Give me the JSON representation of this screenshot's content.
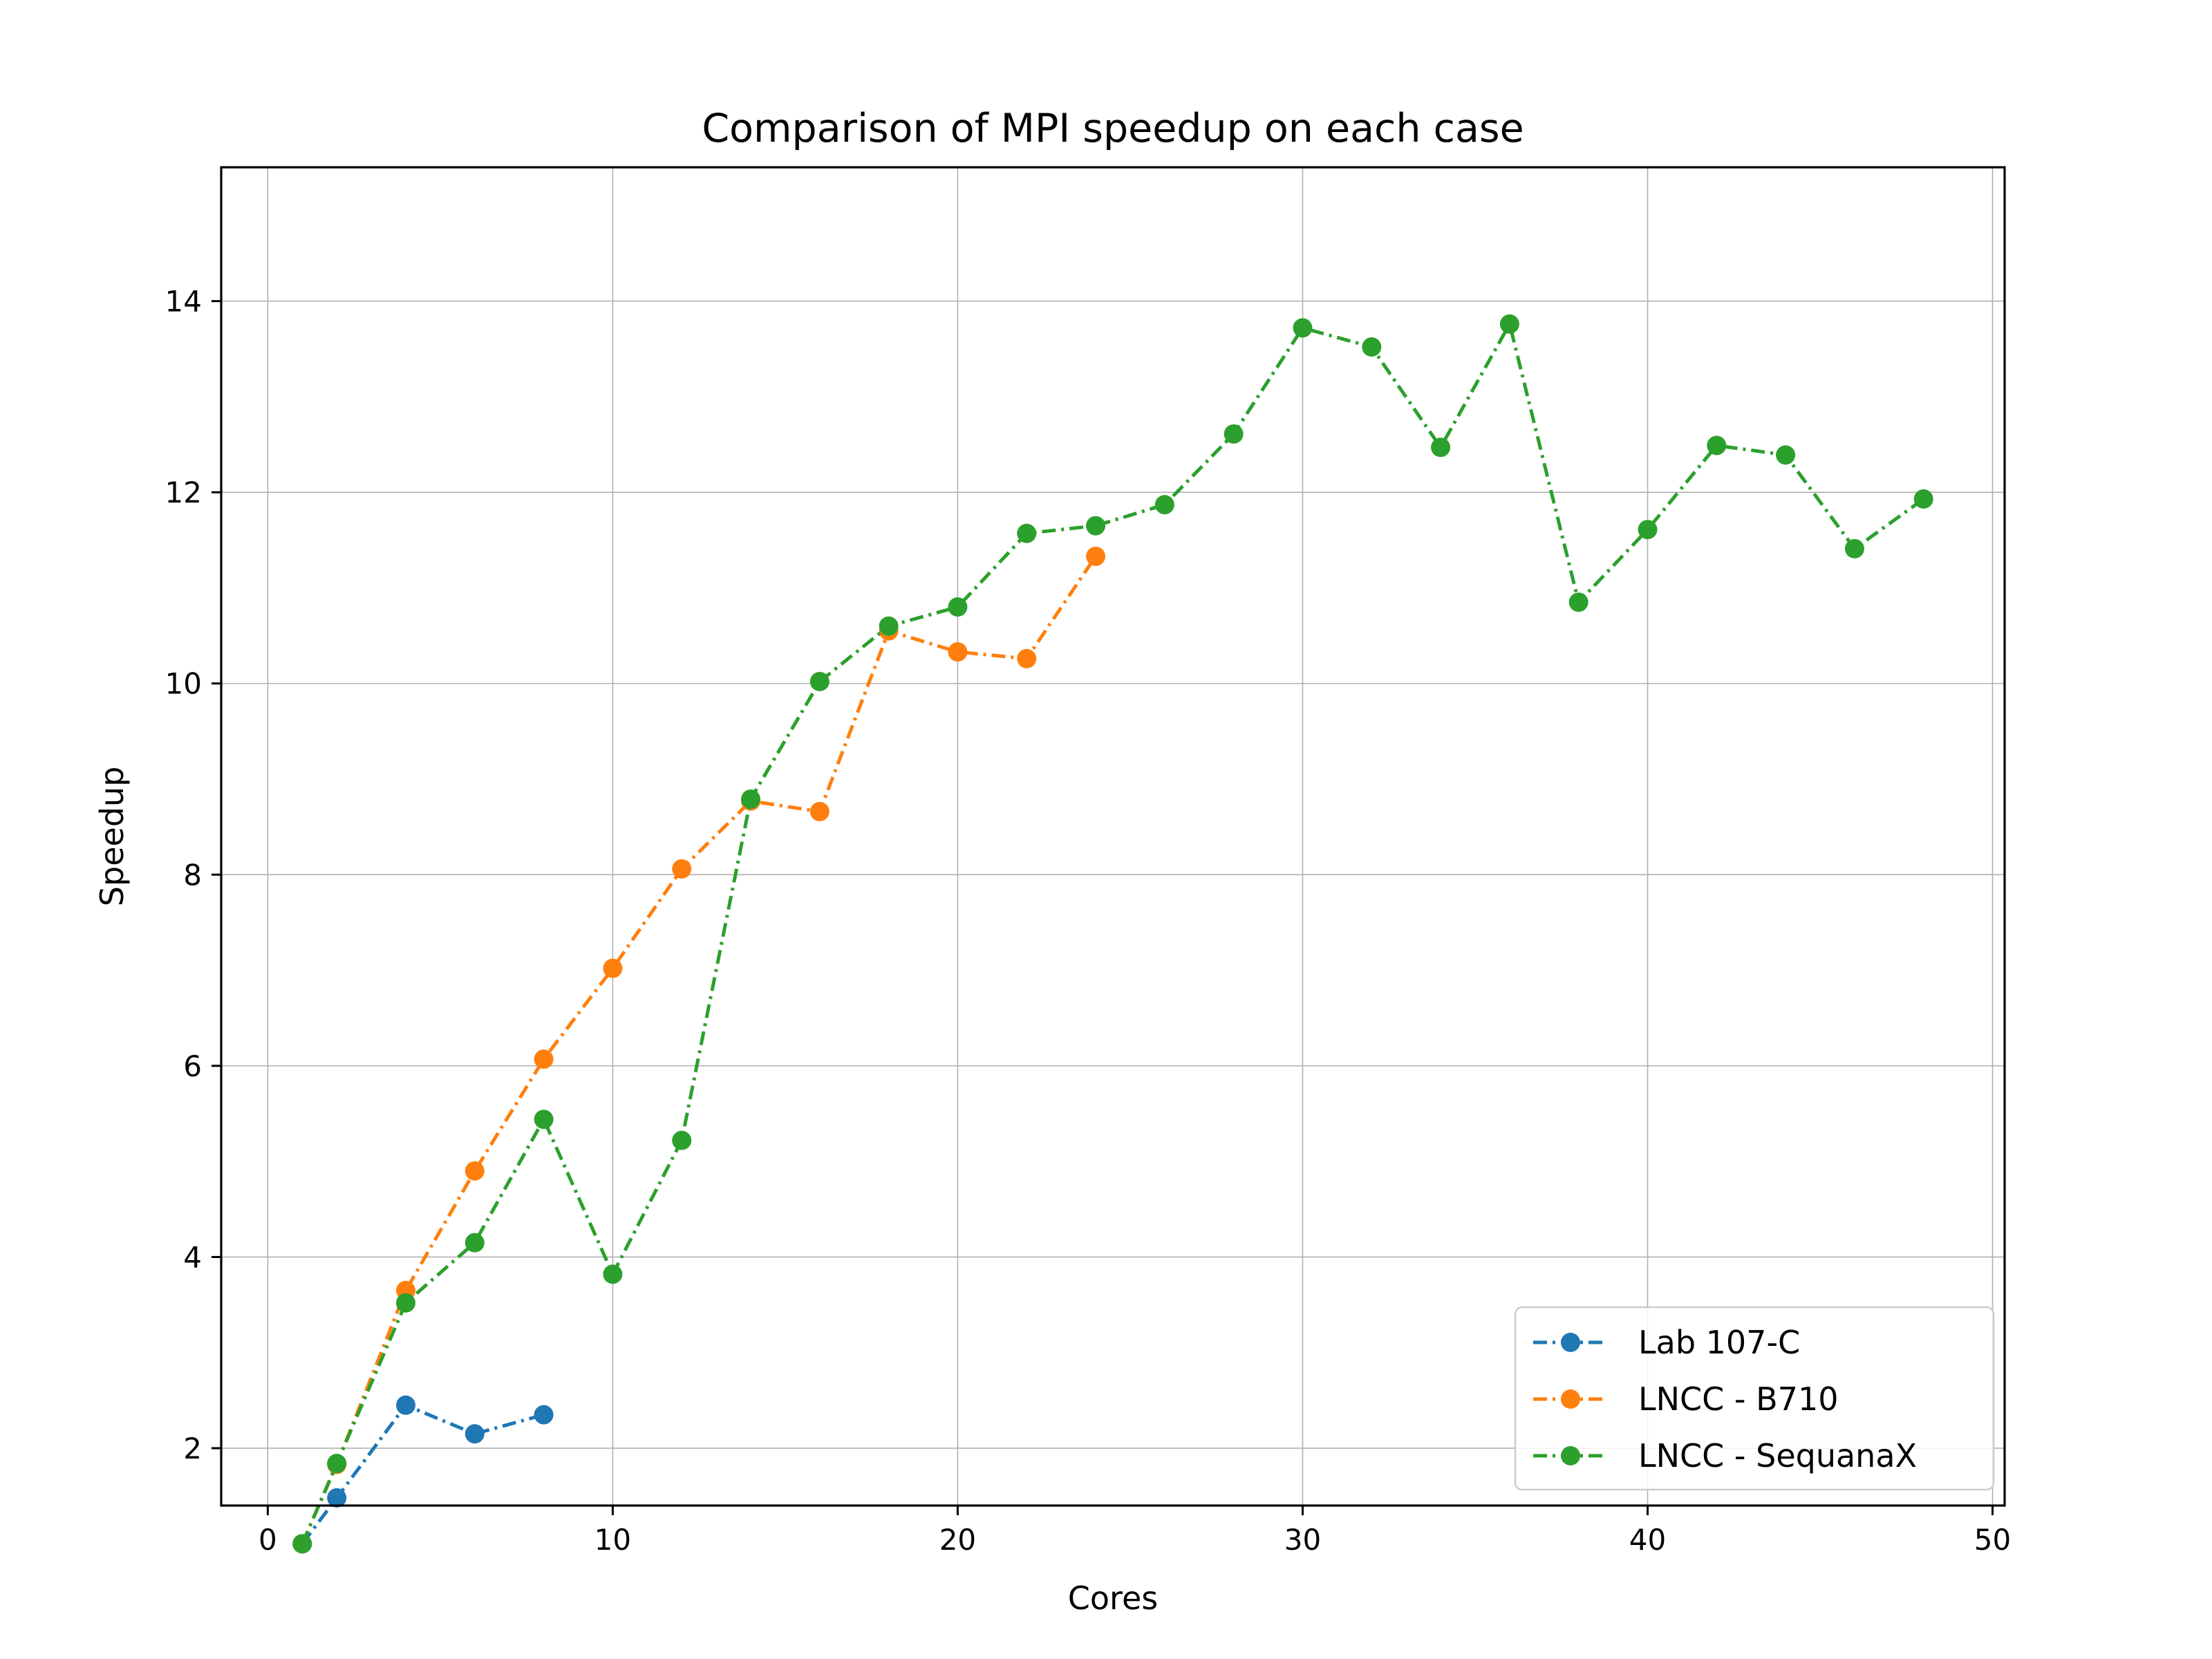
{
  "chart_data": {
    "type": "line",
    "title": "Comparison of MPI speedup on each case",
    "xlabel": "Cores",
    "ylabel": "Speedup",
    "xlim": [
      -1.35,
      50.35
    ],
    "ylim": [
      1.4,
      15.4
    ],
    "xticks": [
      0,
      10,
      20,
      30,
      40,
      50
    ],
    "yticks": [
      2,
      4,
      6,
      8,
      10,
      12,
      14
    ],
    "grid": true,
    "legend_position": "lower right",
    "series": [
      {
        "name": "Lab 107-C",
        "color": "#1f77b4",
        "x": [
          1,
          2,
          4,
          6,
          8
        ],
        "y": [
          1.0,
          1.48,
          2.45,
          2.15,
          2.35
        ]
      },
      {
        "name": "LNCC - B710",
        "color": "#ff7f0e",
        "x": [
          1,
          2,
          4,
          6,
          8,
          10,
          12,
          14,
          16,
          18,
          20,
          22,
          24
        ],
        "y": [
          1.0,
          1.83,
          3.65,
          4.9,
          6.07,
          7.02,
          8.06,
          8.77,
          8.66,
          10.55,
          10.33,
          10.26,
          11.33
        ]
      },
      {
        "name": "LNCC - SequanaX",
        "color": "#2ca02c",
        "x": [
          1,
          2,
          4,
          6,
          8,
          10,
          12,
          14,
          16,
          18,
          20,
          22,
          24,
          26,
          28,
          30,
          32,
          34,
          36,
          38,
          40,
          42,
          44,
          46,
          48
        ],
        "y": [
          1.0,
          1.84,
          3.52,
          4.15,
          5.44,
          3.82,
          5.22,
          8.79,
          10.02,
          10.6,
          10.8,
          11.57,
          11.65,
          11.87,
          12.61,
          13.72,
          13.52,
          12.47,
          13.76,
          10.85,
          11.61,
          12.49,
          12.39,
          11.41,
          11.93
        ]
      }
    ]
  }
}
